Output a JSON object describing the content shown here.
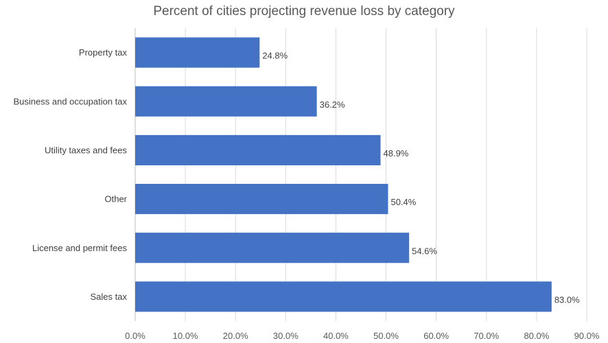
{
  "chart_data": {
    "type": "bar",
    "orientation": "horizontal",
    "title": "Percent of cities projecting revenue loss by category",
    "categories": [
      "Property tax",
      "Business and occupation tax",
      "Utility taxes and fees",
      "Other",
      "License and permit fees",
      "Sales tax"
    ],
    "values": [
      24.8,
      36.2,
      48.9,
      50.4,
      54.6,
      83.0
    ],
    "data_labels": [
      "24.8%",
      "36.2%",
      "48.9%",
      "50.4%",
      "54.6%",
      "83.0%"
    ],
    "xlim": [
      0,
      90
    ],
    "x_ticks": [
      0,
      10,
      20,
      30,
      40,
      50,
      60,
      70,
      80,
      90
    ],
    "x_tick_labels": [
      "0.0%",
      "10.0%",
      "20.0%",
      "30.0%",
      "40.0%",
      "50.0%",
      "60.0%",
      "70.0%",
      "80.0%",
      "90.0%"
    ],
    "grid": "vertical",
    "legend": "none",
    "bar_color": "#4472C4",
    "grid_color": "#d9d9d9"
  }
}
